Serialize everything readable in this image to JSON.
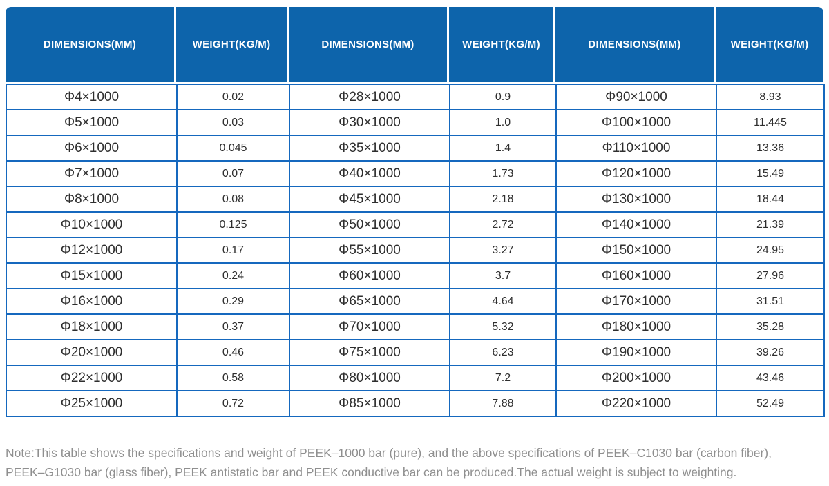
{
  "colors": {
    "header_bg": "#0d64ab",
    "grid_border": "#1568be",
    "header_text": "#ffffff",
    "cell_text": "#2e2e2e",
    "note_text": "#8f8f8f"
  },
  "table": {
    "headers": [
      "DIMENSIONS(MM)",
      "WEIGHT(KG/M)",
      "DIMENSIONS(MM)",
      "WEIGHT(KG/M)",
      "DIMENSIONS(MM)",
      "WEIGHT(KG/M)"
    ],
    "rows": [
      [
        "Φ4×1000",
        "0.02",
        "Φ28×1000",
        "0.9",
        "Φ90×1000",
        "8.93"
      ],
      [
        "Φ5×1000",
        "0.03",
        "Φ30×1000",
        "1.0",
        "Φ100×1000",
        "11.445"
      ],
      [
        "Φ6×1000",
        "0.045",
        "Φ35×1000",
        "1.4",
        "Φ110×1000",
        "13.36"
      ],
      [
        "Φ7×1000",
        "0.07",
        "Φ40×1000",
        "1.73",
        "Φ120×1000",
        "15.49"
      ],
      [
        "Φ8×1000",
        "0.08",
        "Φ45×1000",
        "2.18",
        "Φ130×1000",
        "18.44"
      ],
      [
        "Φ10×1000",
        "0.125",
        "Φ50×1000",
        "2.72",
        "Φ140×1000",
        "21.39"
      ],
      [
        "Φ12×1000",
        "0.17",
        "Φ55×1000",
        "3.27",
        "Φ150×1000",
        "24.95"
      ],
      [
        "Φ15×1000",
        "0.24",
        "Φ60×1000",
        "3.7",
        "Φ160×1000",
        "27.96"
      ],
      [
        "Φ16×1000",
        "0.29",
        "Φ65×1000",
        "4.64",
        "Φ170×1000",
        "31.51"
      ],
      [
        "Φ18×1000",
        "0.37",
        "Φ70×1000",
        "5.32",
        "Φ180×1000",
        "35.28"
      ],
      [
        "Φ20×1000",
        "0.46",
        "Φ75×1000",
        "6.23",
        "Φ190×1000",
        "39.26"
      ],
      [
        "Φ22×1000",
        "0.58",
        "Φ80×1000",
        "7.2",
        "Φ200×1000",
        "43.46"
      ],
      [
        "Φ25×1000",
        "0.72",
        "Φ85×1000",
        "7.88",
        "Φ220×1000",
        "52.49"
      ]
    ]
  },
  "note": {
    "line1": "Note:This table shows the specifications and weight of PEEK–1000 bar (pure), and the above specifications of PEEK–C1030 bar (carbon fiber),",
    "line2": "PEEK–G1030 bar (glass fiber), PEEK antistatic bar and PEEK conductive bar can be produced.The actual weight is subject to weighting."
  }
}
